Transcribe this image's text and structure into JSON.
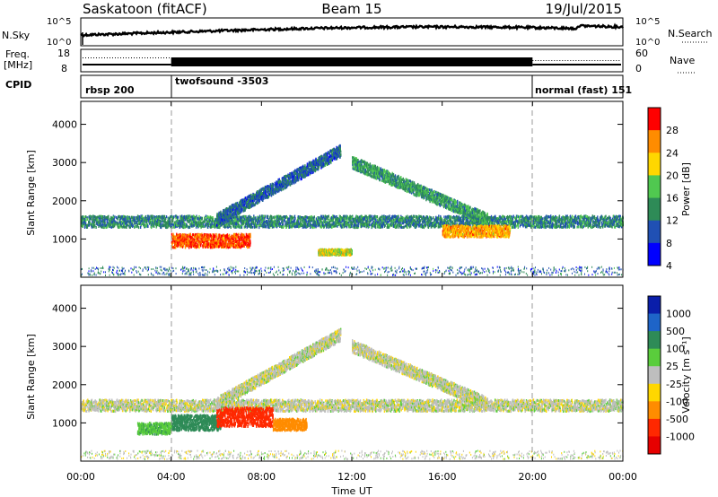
{
  "header": {
    "station": "Saskatoon (fitACF)",
    "beam": "Beam 15",
    "date": "19/Jul/2015"
  },
  "noise_panel": {
    "left_label": "N.Sky",
    "right_label": "N.Search",
    "left_ticks": [
      "10^5",
      "10^0"
    ],
    "right_ticks": [
      "10^5",
      "10^0"
    ]
  },
  "freq_panel": {
    "left_label_1": "Freq.",
    "left_label_2": "[MHz]",
    "right_label": "Nave",
    "left_ticks": [
      "18",
      "8"
    ],
    "right_ticks": [
      "60",
      "0"
    ]
  },
  "cpid_panel": {
    "label": "CPID",
    "modes": [
      {
        "name": "rbsp 200",
        "start": "00:00",
        "end": "04:00"
      },
      {
        "name": "twofsound -3503",
        "start": "04:00",
        "end": "20:00"
      },
      {
        "name": "normal (fast) 151",
        "start": "20:00",
        "end": "24:00"
      }
    ]
  },
  "power_colorbar": {
    "title": "Power [dB]",
    "ticks": [
      "4",
      "8",
      "12",
      "16",
      "20",
      "24",
      "28"
    ],
    "colors": [
      "#0000ff",
      "#2050b4",
      "#2e8b57",
      "#50c850",
      "#ffd700",
      "#ff8c00",
      "#ff0000"
    ]
  },
  "velocity_colorbar": {
    "title": "Velocity [m s⁻¹]",
    "ticks": [
      "1000",
      "500",
      "100",
      "25",
      "-25",
      "-100",
      "-500",
      "-1000"
    ],
    "colors": [
      "#0a1eaa",
      "#1e64c8",
      "#2e8b57",
      "#5acd3c",
      "#bebebe",
      "#ffd700",
      "#ff8c00",
      "#ff2800",
      "#e60000"
    ]
  },
  "axes": {
    "ylabel": "Slant Range [km]",
    "yticks": [
      "1000",
      "2000",
      "3000",
      "4000"
    ],
    "xlabel": "Time UT",
    "xticks": [
      "00:00",
      "04:00",
      "08:00",
      "12:00",
      "16:00",
      "20:00",
      "00:00"
    ]
  },
  "chart_data": [
    {
      "type": "heatmap",
      "name": "Power",
      "x_range_hours": [
        0,
        24
      ],
      "y_range_km": [
        0,
        4600
      ],
      "colorbar_range_db": [
        0,
        30
      ],
      "features": [
        {
          "type": "band",
          "t0": 0.0,
          "t1": 24.0,
          "range_km": 1450,
          "width_km": 300,
          "typical_db": 10
        },
        {
          "type": "patch",
          "t0": 4.0,
          "t1": 7.5,
          "range_km": 950,
          "width_km": 350,
          "typical_db": 26
        },
        {
          "type": "arc",
          "t0": 6.0,
          "t1": 11.5,
          "range_km_start": 1500,
          "range_km_end": 3300,
          "typical_db": 8
        },
        {
          "type": "arc",
          "t0": 12.0,
          "t1": 18.0,
          "range_km_start": 3000,
          "range_km_end": 1500,
          "typical_db": 12
        },
        {
          "type": "patch",
          "t0": 10.5,
          "t1": 12.0,
          "range_km": 650,
          "width_km": 150,
          "typical_db": 18
        },
        {
          "type": "patch",
          "t0": 16.0,
          "t1": 19.0,
          "range_km": 1200,
          "width_km": 300,
          "typical_db": 22
        }
      ]
    },
    {
      "type": "heatmap",
      "name": "Velocity",
      "x_range_hours": [
        0,
        24
      ],
      "y_range_km": [
        0,
        4600
      ],
      "features": [
        {
          "type": "band",
          "t0": 0.0,
          "t1": 24.0,
          "range_km": 1450,
          "width_km": 300,
          "typical_velocity": 0
        },
        {
          "type": "patch",
          "t0": 4.0,
          "t1": 6.2,
          "range_km": 1000,
          "width_km": 400,
          "typical_velocity": 150
        },
        {
          "type": "patch",
          "t0": 2.5,
          "t1": 4.0,
          "range_km": 850,
          "width_km": 300,
          "typical_velocity": 80
        },
        {
          "type": "patch",
          "t0": 6.0,
          "t1": 8.5,
          "range_km": 1150,
          "width_km": 500,
          "typical_velocity": -600
        },
        {
          "type": "patch",
          "t0": 8.5,
          "t1": 10.0,
          "range_km": 950,
          "width_km": 300,
          "typical_velocity": -150
        },
        {
          "type": "arc",
          "t0": 6.0,
          "t1": 11.5,
          "range_km_start": 1500,
          "range_km_end": 3300,
          "typical_velocity": 0
        },
        {
          "type": "arc",
          "t0": 12.0,
          "t1": 18.0,
          "range_km_start": 3000,
          "range_km_end": 1500,
          "typical_velocity": 0
        }
      ]
    }
  ]
}
